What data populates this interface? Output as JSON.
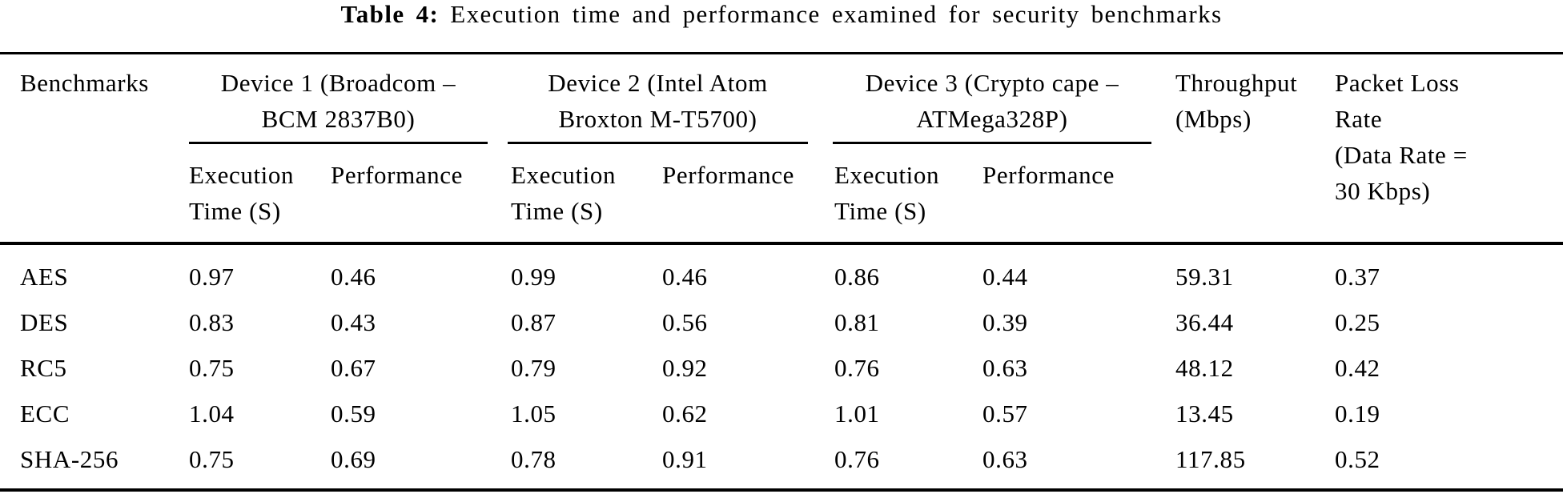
{
  "caption": {
    "label": "Table 4:",
    "text": "Execution time and performance examined for security benchmarks"
  },
  "header": {
    "benchmarks": "Benchmarks",
    "device_groups": [
      {
        "lines": [
          "Device 1 (Broadcom –",
          "BCM 2837B0)"
        ]
      },
      {
        "lines": [
          "Device 2 (Intel Atom",
          "Broxton M-T5700)"
        ]
      },
      {
        "lines": [
          "Device 3 (Crypto cape –",
          "ATMega328P)"
        ]
      }
    ],
    "sub": {
      "execution_line1": "Execution",
      "execution_line2": "Time (S)",
      "performance": "Performance"
    },
    "throughput": {
      "lines": [
        "Throughput",
        "(Mbps)"
      ]
    },
    "packet_loss": {
      "lines": [
        "Packet Loss",
        "Rate",
        "(Data Rate =",
        "30 Kbps)"
      ]
    }
  },
  "table": {
    "rows": [
      {
        "benchmark": "AES",
        "values": [
          "0.97",
          "0.46",
          "0.99",
          "0.46",
          "0.86",
          "0.44",
          "59.31",
          "0.37"
        ]
      },
      {
        "benchmark": "DES",
        "values": [
          "0.83",
          "0.43",
          "0.87",
          "0.56",
          "0.81",
          "0.39",
          "36.44",
          "0.25"
        ]
      },
      {
        "benchmark": "RC5",
        "values": [
          "0.75",
          "0.67",
          "0.79",
          "0.92",
          "0.76",
          "0.63",
          "48.12",
          "0.42"
        ]
      },
      {
        "benchmark": "ECC",
        "values": [
          "1.04",
          "0.59",
          "1.05",
          "0.62",
          "1.01",
          "0.57",
          "13.45",
          "0.19"
        ]
      },
      {
        "benchmark": "SHA-256",
        "values": [
          "0.75",
          "0.69",
          "0.78",
          "0.91",
          "0.76",
          "0.63",
          "117.85",
          "0.52"
        ]
      }
    ]
  }
}
